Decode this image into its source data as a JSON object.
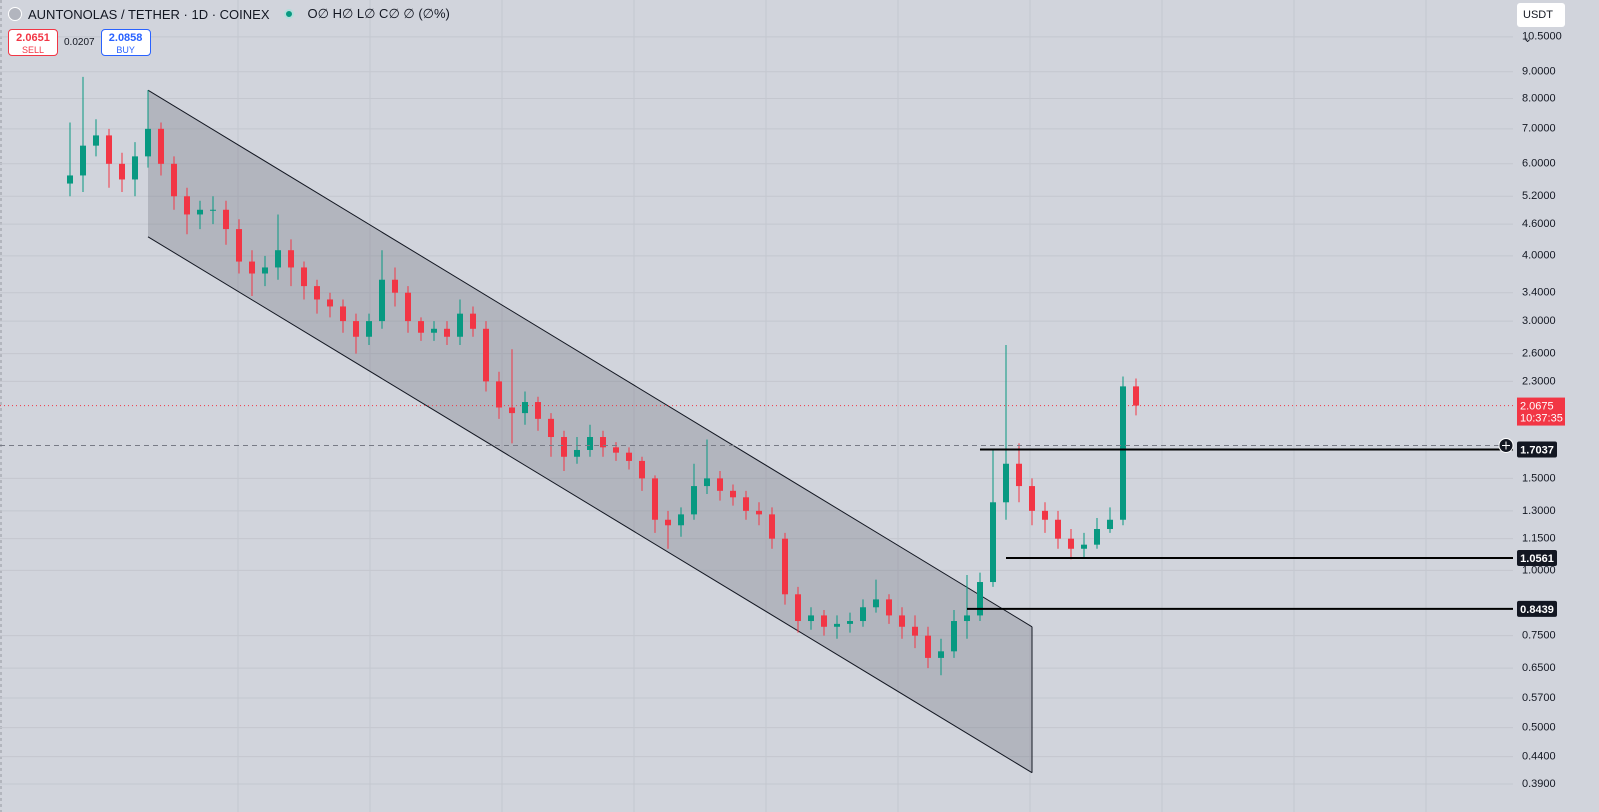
{
  "chart_data": {
    "type": "candlestick",
    "title": "AUNTONOLAS / TETHER · 1D · COINEX",
    "ohlc_text": "O∅ H∅ L∅ C∅ ∅ (∅%)",
    "sell": {
      "price": 2.0651,
      "label": "SELL"
    },
    "spread": 0.0207,
    "buy": {
      "price": 2.0858,
      "label": "BUY"
    },
    "currency": "USDT",
    "log_scale": true,
    "grid": true,
    "up_color": "#089981",
    "down_color": "#f23645",
    "ylim": [
      0.37,
      12.35
    ],
    "yticks": [
      {
        "value": 10.5,
        "label": "10.5000"
      },
      {
        "value": 9,
        "label": "9.0000"
      },
      {
        "value": 8,
        "label": "8.0000"
      },
      {
        "value": 7,
        "label": "7.0000"
      },
      {
        "value": 6,
        "label": "6.0000"
      },
      {
        "value": 5.2,
        "label": "5.2000"
      },
      {
        "value": 4.6,
        "label": "4.6000"
      },
      {
        "value": 4,
        "label": "4.0000"
      },
      {
        "value": 3.4,
        "label": "3.4000"
      },
      {
        "value": 3,
        "label": "3.0000"
      },
      {
        "value": 2.6,
        "label": "2.6000"
      },
      {
        "value": 2.3,
        "label": "2.3000"
      },
      {
        "value": 1.5,
        "label": "1.5000"
      },
      {
        "value": 1.3,
        "label": "1.3000"
      },
      {
        "value": 1.15,
        "label": "1.1500"
      },
      {
        "value": 1,
        "label": "1.0000"
      },
      {
        "value": 0.75,
        "label": "0.7500"
      },
      {
        "value": 0.65,
        "label": "0.6500"
      },
      {
        "value": 0.57,
        "label": "0.5700"
      },
      {
        "value": 0.5,
        "label": "0.5000"
      },
      {
        "value": 0.44,
        "label": "0.4400"
      },
      {
        "value": 0.39,
        "label": "0.3900"
      }
    ],
    "open": [
      5.5,
      5.7,
      6.5,
      6.8,
      6.0,
      5.6,
      6.2,
      7.0,
      6.0,
      5.2,
      4.8,
      4.9,
      4.9,
      4.5,
      3.9,
      3.7,
      3.8,
      4.1,
      3.8,
      3.5,
      3.3,
      3.2,
      3.0,
      2.8,
      3.0,
      3.6,
      3.4,
      3.0,
      2.85,
      2.9,
      2.8,
      3.1,
      2.9,
      2.3,
      2.05,
      2.0,
      2.1,
      1.95,
      1.8,
      1.65,
      1.7,
      1.8,
      1.72,
      1.68,
      1.62,
      1.5,
      1.25,
      1.22,
      1.28,
      1.45,
      1.5,
      1.42,
      1.38,
      1.3,
      1.28,
      1.15,
      0.9,
      0.8,
      0.82,
      0.78,
      0.79,
      0.8,
      0.85,
      0.88,
      0.82,
      0.78,
      0.75,
      0.68,
      0.7,
      0.8,
      0.82,
      0.95,
      1.35,
      1.6,
      1.45,
      1.3,
      1.25,
      1.15,
      1.1,
      1.12,
      1.2,
      1.25,
      2.25
    ],
    "high": [
      7.2,
      8.8,
      7.3,
      7.0,
      6.3,
      6.6,
      8.3,
      7.2,
      6.2,
      5.4,
      5.1,
      5.2,
      5.1,
      4.7,
      4.1,
      4.0,
      4.8,
      4.3,
      3.9,
      3.6,
      3.4,
      3.3,
      3.1,
      3.1,
      4.1,
      3.8,
      3.5,
      3.05,
      3.0,
      3.0,
      3.3,
      3.2,
      3.0,
      2.4,
      2.65,
      2.2,
      2.15,
      2.0,
      1.85,
      1.8,
      1.9,
      1.85,
      1.76,
      1.72,
      1.65,
      1.52,
      1.3,
      1.32,
      1.6,
      1.78,
      1.55,
      1.46,
      1.42,
      1.35,
      1.32,
      1.18,
      0.93,
      0.85,
      0.84,
      0.82,
      0.83,
      0.88,
      0.96,
      0.9,
      0.85,
      0.82,
      0.78,
      0.74,
      0.84,
      0.98,
      0.99,
      1.7,
      2.7,
      1.75,
      1.5,
      1.35,
      1.3,
      1.2,
      1.18,
      1.26,
      1.32,
      2.35,
      2.33
    ],
    "low": [
      5.2,
      5.3,
      6.2,
      5.4,
      5.3,
      5.2,
      5.9,
      5.7,
      4.9,
      4.4,
      4.5,
      4.6,
      4.2,
      3.7,
      3.35,
      3.5,
      3.6,
      3.5,
      3.3,
      3.1,
      3.05,
      2.85,
      2.6,
      2.7,
      2.9,
      3.2,
      2.85,
      2.75,
      2.75,
      2.7,
      2.7,
      2.8,
      2.2,
      1.95,
      1.75,
      1.9,
      1.85,
      1.65,
      1.55,
      1.6,
      1.65,
      1.65,
      1.62,
      1.56,
      1.42,
      1.18,
      1.1,
      1.16,
      1.25,
      1.4,
      1.36,
      1.33,
      1.25,
      1.22,
      1.1,
      0.86,
      0.76,
      0.77,
      0.75,
      0.74,
      0.76,
      0.78,
      0.83,
      0.79,
      0.74,
      0.71,
      0.65,
      0.63,
      0.68,
      0.74,
      0.8,
      0.93,
      1.25,
      1.35,
      1.22,
      1.18,
      1.1,
      1.05,
      1.06,
      1.1,
      1.18,
      1.22,
      1.98
    ],
    "close": [
      5.7,
      6.5,
      6.8,
      6.0,
      5.6,
      6.2,
      7.0,
      6.0,
      5.2,
      4.8,
      4.9,
      4.9,
      4.5,
      3.9,
      3.7,
      3.8,
      4.1,
      3.8,
      3.5,
      3.3,
      3.2,
      3.0,
      2.8,
      3.0,
      3.6,
      3.4,
      3.0,
      2.85,
      2.9,
      2.8,
      3.1,
      2.9,
      2.3,
      2.05,
      2.0,
      2.1,
      1.95,
      1.8,
      1.65,
      1.7,
      1.8,
      1.72,
      1.68,
      1.62,
      1.5,
      1.25,
      1.22,
      1.28,
      1.45,
      1.5,
      1.42,
      1.38,
      1.3,
      1.28,
      1.15,
      0.9,
      0.8,
      0.82,
      0.78,
      0.79,
      0.8,
      0.85,
      0.88,
      0.82,
      0.78,
      0.75,
      0.68,
      0.7,
      0.8,
      0.82,
      0.95,
      1.35,
      1.6,
      1.45,
      1.3,
      1.25,
      1.15,
      1.1,
      1.12,
      1.2,
      1.25,
      2.25,
      2.0675
    ],
    "last_price": {
      "value": 2.0675,
      "countdown": "10:37:35"
    },
    "channel": {
      "start_index": 6,
      "end_index": 74,
      "upper": [
        8.3,
        0.78
      ],
      "lower": [
        4.35,
        0.41
      ]
    },
    "price_lines": [
      {
        "value": 1.7037,
        "start_index": 70
      },
      {
        "value": 1.0561,
        "start_index": 72
      },
      {
        "value": 0.8439,
        "start_index": 69
      }
    ]
  }
}
